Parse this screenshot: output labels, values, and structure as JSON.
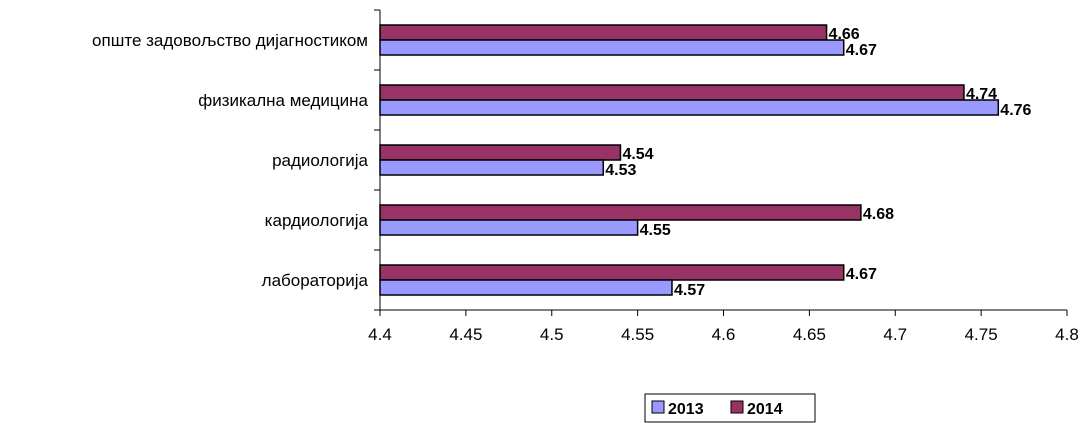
{
  "chart_data": {
    "type": "bar",
    "orientation": "horizontal",
    "categories": [
      "опште задовољство дијагностиком",
      "физикална медицина",
      "радиологија",
      "кардиологија",
      "лабораторија"
    ],
    "series": [
      {
        "name": "2013",
        "color": "#9999ff",
        "values": [
          4.67,
          4.76,
          4.53,
          4.55,
          4.57
        ]
      },
      {
        "name": "2014",
        "color": "#993366",
        "values": [
          4.66,
          4.74,
          4.54,
          4.68,
          4.67
        ]
      }
    ],
    "xlim": [
      4.4,
      4.8
    ],
    "xticks": [
      "4.4",
      "4.45",
      "4.5",
      "4.55",
      "4.6",
      "4.65",
      "4.7",
      "4.75",
      "4.8"
    ],
    "grid": false,
    "legend": "bottom",
    "data_labels": [
      [
        "4.67",
        "4.76",
        "4.53",
        "4.55",
        "4.57"
      ],
      [
        "4.66",
        "4.74",
        "4.54",
        "4.68",
        "4.67"
      ]
    ],
    "title": "",
    "xlabel": "",
    "ylabel": ""
  }
}
